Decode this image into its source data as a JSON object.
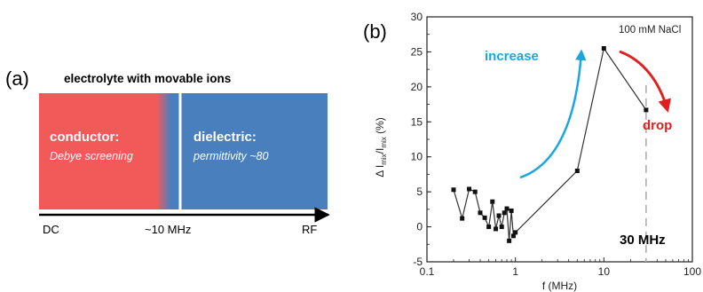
{
  "panel_a": {
    "label": "(a)",
    "title": "electrolyte with movable ions",
    "conductor": {
      "title": "conductor:",
      "subtitle": "Debye screening",
      "color": "#f25a5a"
    },
    "dielectric": {
      "title": "dielectric:",
      "subtitle": "permittivity ~80",
      "color": "#4a7fbe"
    },
    "axis_ticks": [
      "DC",
      "~10 MHz",
      "RF"
    ]
  },
  "panel_b": {
    "label": "(b)",
    "annotations": {
      "legend": "100 mM NaCl",
      "increase": "increase",
      "drop": "drop",
      "marker": "30 MHz"
    },
    "colors": {
      "increase_arrow": "#1aa7e0",
      "drop_arrow": "#e02020",
      "series": "#333333"
    }
  },
  "chart_data": {
    "type": "line",
    "xscale": "log",
    "xlim": [
      0.1,
      100
    ],
    "ylim": [
      -5,
      30
    ],
    "xlabel": "f (MHz)",
    "ylabel_parts": [
      "Δ I",
      "mix",
      "/I",
      "mix",
      " (%)"
    ],
    "xticks": [
      0.1,
      1,
      10,
      100
    ],
    "xtick_labels": [
      "0.1",
      "1",
      "10",
      "100"
    ],
    "yticks": [
      -5,
      0,
      5,
      10,
      15,
      20,
      25,
      30
    ],
    "ytick_labels": [
      "-5",
      "0",
      "5",
      "10",
      "15",
      "20",
      "25",
      "30"
    ],
    "series": [
      {
        "x": [
          0.2,
          0.25,
          0.3,
          0.35,
          0.4,
          0.45,
          0.5,
          0.55,
          0.6,
          0.65,
          0.7,
          0.75,
          0.8,
          0.85,
          0.9,
          0.95,
          1.0,
          5,
          10,
          30
        ],
        "y": [
          5.3,
          1.2,
          5.4,
          5.0,
          2.0,
          1.3,
          0.0,
          3.6,
          -0.3,
          1.6,
          0.0,
          2.0,
          2.6,
          -2.0,
          2.3,
          -1.3,
          -0.8,
          8.0,
          25.5,
          16.7
        ]
      }
    ],
    "reference_line_x": 30
  }
}
